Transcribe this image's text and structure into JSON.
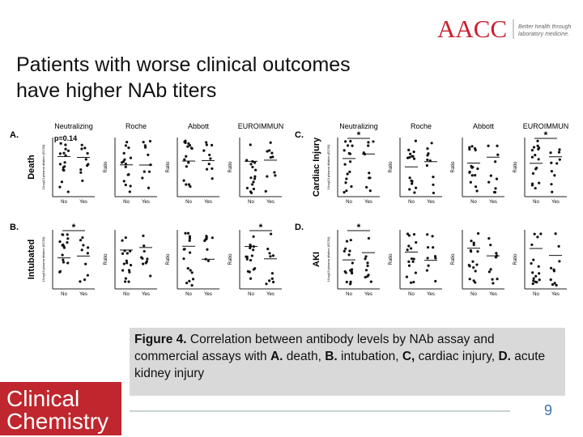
{
  "header": {
    "logo": "AACC",
    "tagline": [
      "Better health through",
      "laboratory medicine."
    ]
  },
  "title": [
    "Patients with worse clinical outcomes",
    "have higher NAb titers"
  ],
  "figure": {
    "assays": [
      "Neutralizing",
      "Roche",
      "Abbott",
      "EUROIMMUN"
    ],
    "groups": [
      "No",
      "Yes"
    ],
    "y_axis_labels": [
      "1/Log10 plasma dilution (EC50)",
      "Ratio",
      "Ratio",
      "Ratio"
    ],
    "panels": [
      {
        "label": "A.",
        "outcome": "Death",
        "annotations": [
          "p=0.14",
          null,
          null,
          null
        ]
      },
      {
        "label": "B.",
        "outcome": "Intubated",
        "annotations": [
          "*",
          null,
          null,
          "*"
        ]
      },
      {
        "label": "C.",
        "outcome": "Cardiac Injury",
        "annotations": [
          "*",
          null,
          null,
          "*"
        ]
      },
      {
        "label": "D.",
        "outcome": "AKI",
        "annotations": [
          "*",
          null,
          null,
          null
        ]
      }
    ]
  },
  "caption": [
    {
      "text": "Figure 4.",
      "bold": true
    },
    {
      "text": " Correlation between antibody levels by NAb assay and commercial assays with ",
      "bold": false
    },
    {
      "text": "A.",
      "bold": true
    },
    {
      "text": " death, ",
      "bold": false
    },
    {
      "text": "B.",
      "bold": true
    },
    {
      "text": " intubation, ",
      "bold": false
    },
    {
      "text": "C,",
      "bold": true
    },
    {
      "text": " cardiac injury, ",
      "bold": false
    },
    {
      "text": "D.",
      "bold": true
    },
    {
      "text": " acute kidney injury",
      "bold": false
    }
  ],
  "page_number": "9",
  "footer_logo": [
    "Clinical",
    "Chemistry"
  ]
}
